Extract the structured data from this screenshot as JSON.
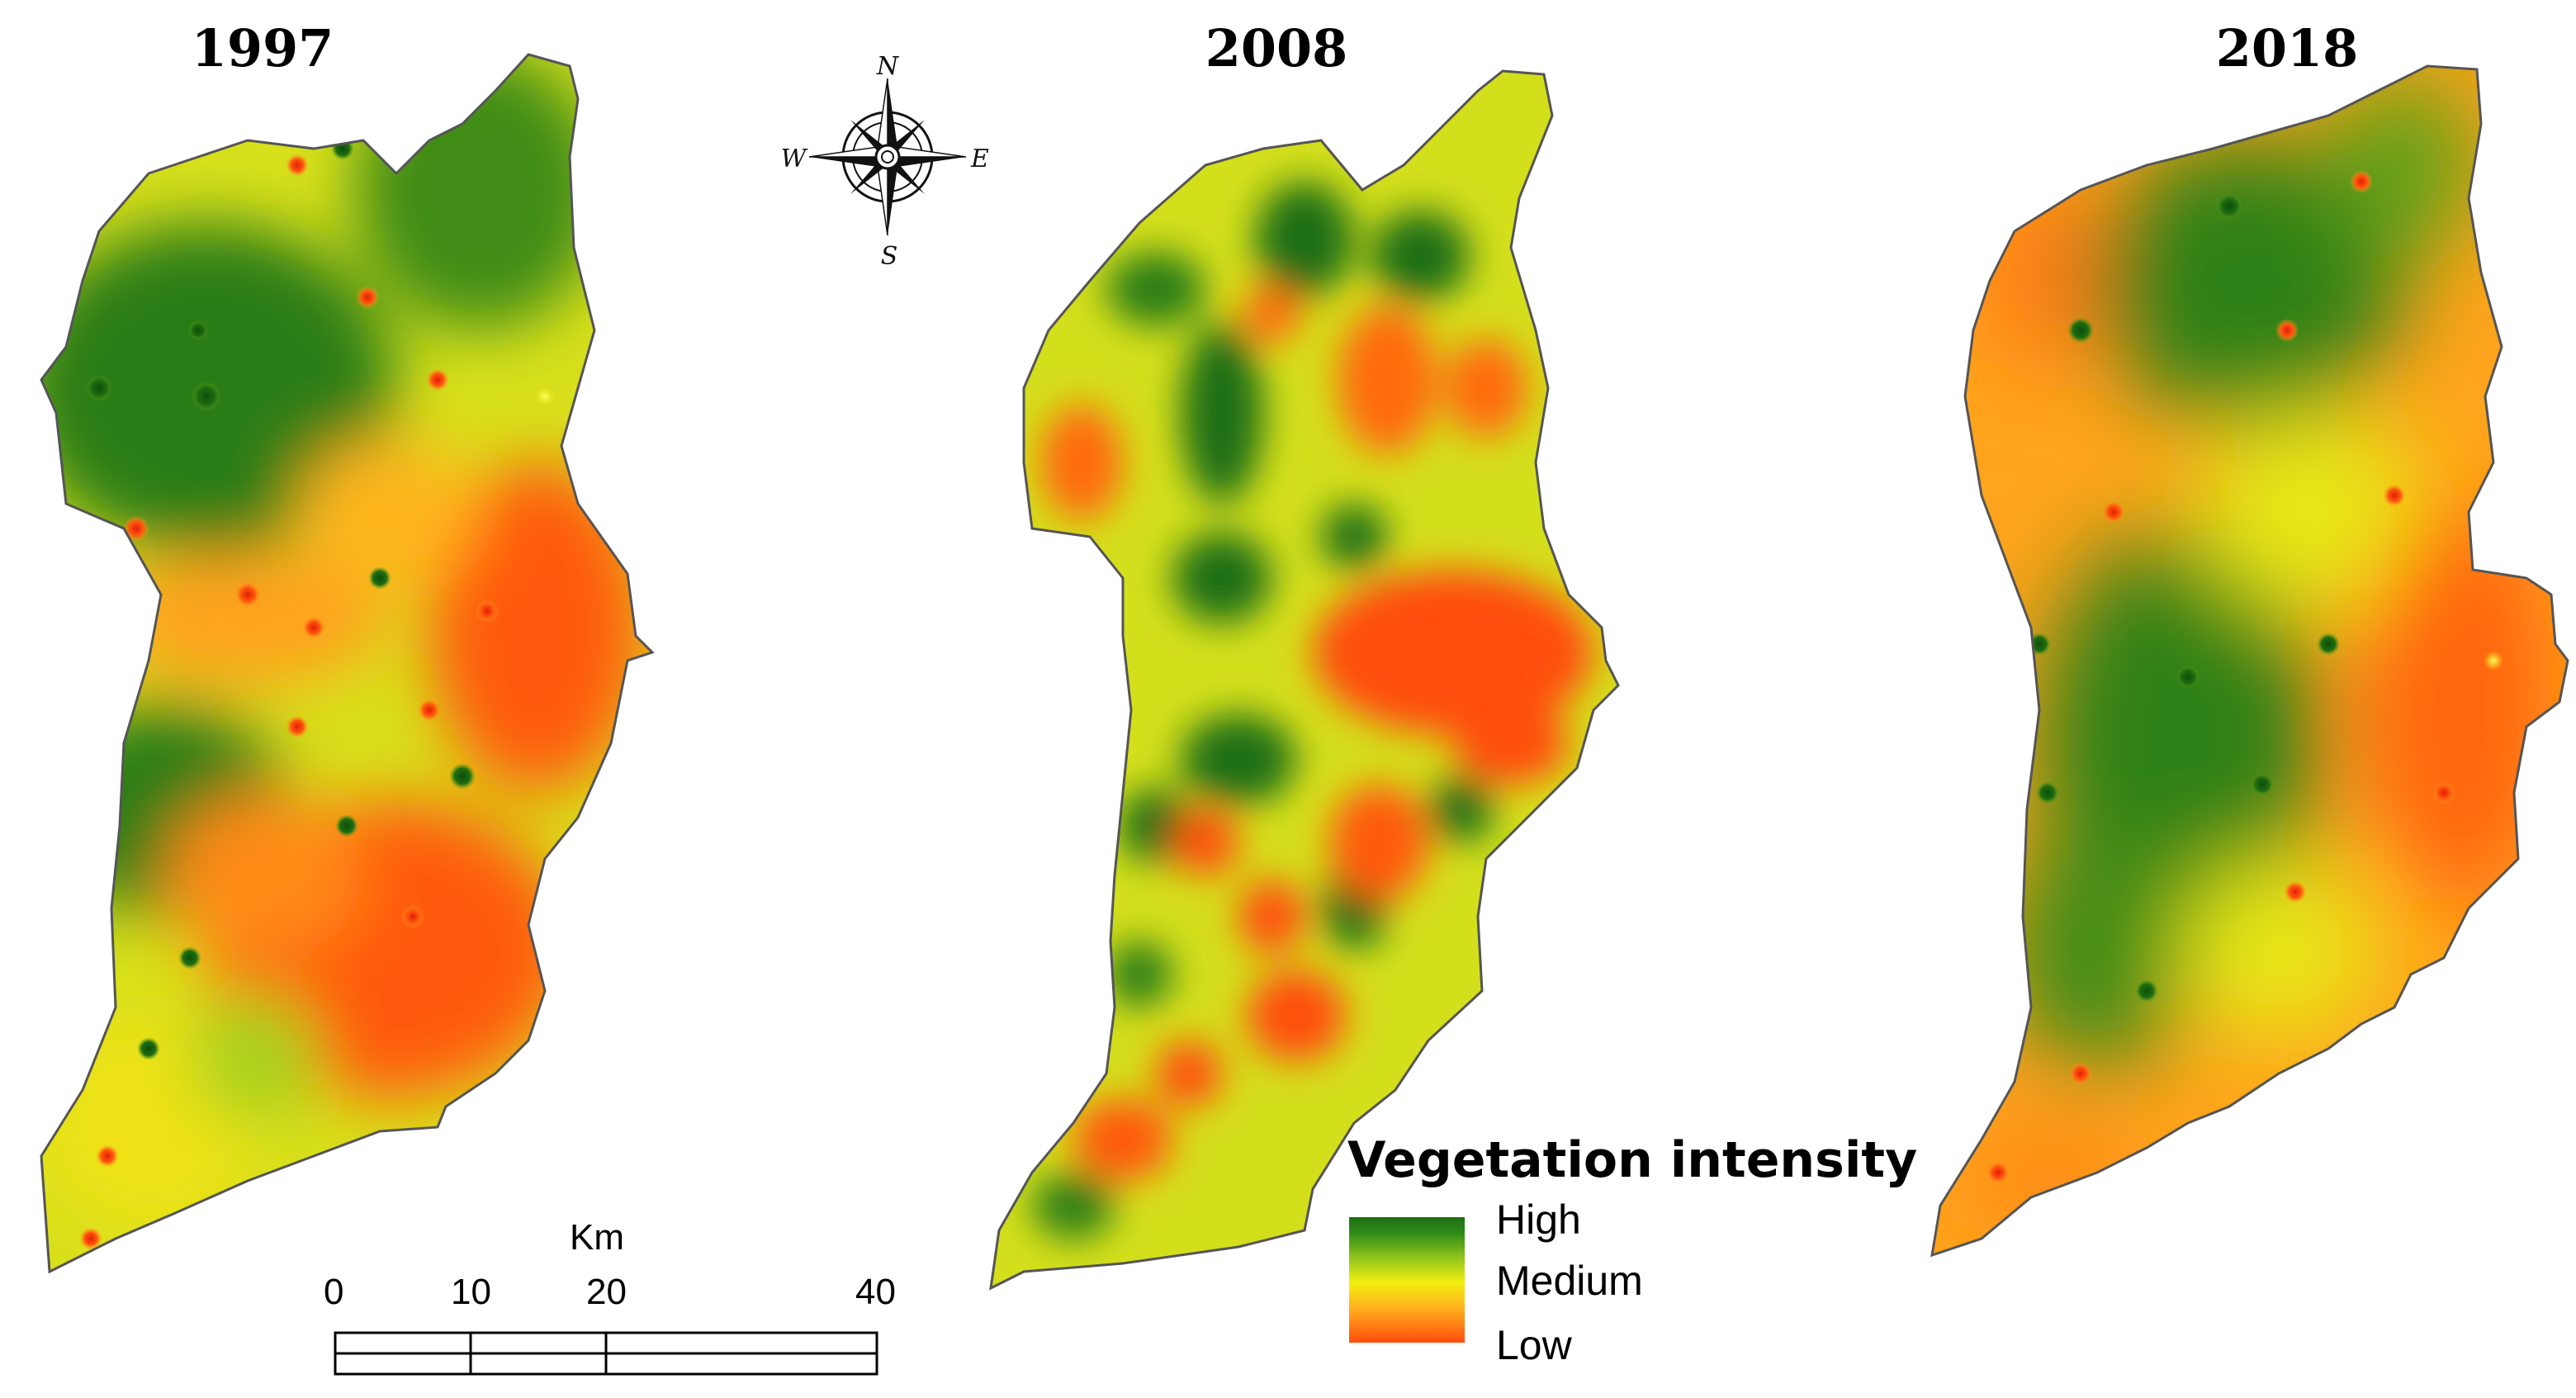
{
  "panels": [
    {
      "year": "1997"
    },
    {
      "year": "2008"
    },
    {
      "year": "2018"
    }
  ],
  "compass": {
    "n": "N",
    "s": "S",
    "e": "E",
    "w": "W"
  },
  "scale_bar": {
    "unit": "Km",
    "ticks": [
      "0",
      "10",
      "20",
      "40"
    ],
    "values": [
      0,
      10,
      20,
      40
    ]
  },
  "legend": {
    "title": "Vegetation intensity",
    "high": "High",
    "medium": "Medium",
    "low": "Low"
  },
  "colors": {
    "high": "#1f6e12",
    "medium": "#f2ef10",
    "low": "#ff4d0c"
  }
}
